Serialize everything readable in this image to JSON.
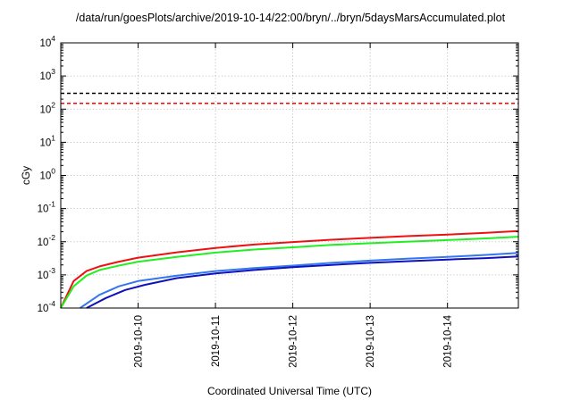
{
  "chart_data": {
    "type": "line",
    "title": "/data/run/goesPlots/archive/2019-10-14/22:00/bryn/../bryn/5daysMarsAccumulated.plot",
    "xlabel": "Coordinated Universal Time (UTC)",
    "ylabel": "cGy",
    "yscale": "log",
    "ylim": [
      0.0001,
      10000
    ],
    "xlim": [
      "2019-10-09T00:00",
      "2019-10-14T22:00"
    ],
    "grid": true,
    "x_ticks": [
      "2019-10-10",
      "2019-10-11",
      "2019-10-12",
      "2019-10-13",
      "2019-10-14"
    ],
    "y_ticks": [
      {
        "base": "10",
        "exp": "4"
      },
      {
        "base": "10",
        "exp": "3"
      },
      {
        "base": "10",
        "exp": "2"
      },
      {
        "base": "10",
        "exp": "1"
      },
      {
        "base": "10",
        "exp": "0"
      },
      {
        "base": "10",
        "exp": "-1"
      },
      {
        "base": "10",
        "exp": "-2"
      },
      {
        "base": "10",
        "exp": "-3"
      },
      {
        "base": "10",
        "exp": "-4"
      }
    ],
    "reference_lines": [
      {
        "value": 300,
        "color": "#000000",
        "style": "dashed"
      },
      {
        "value": 150,
        "color": "#ff0000",
        "style": "dashed"
      }
    ],
    "series": [
      {
        "color": "#ee1111",
        "x": [
          "2019-10-09T00:00",
          "2019-10-09T04:00",
          "2019-10-09T08:00",
          "2019-10-09T12:00",
          "2019-10-09T18:00",
          "2019-10-10T00:00",
          "2019-10-10T12:00",
          "2019-10-11T00:00",
          "2019-10-11T12:00",
          "2019-10-12T00:00",
          "2019-10-12T12:00",
          "2019-10-13T00:00",
          "2019-10-13T12:00",
          "2019-10-14T00:00",
          "2019-10-14T12:00",
          "2019-10-14T22:00"
        ],
        "values": [
          0.0001,
          0.00065,
          0.0013,
          0.0018,
          0.0025,
          0.0033,
          0.0048,
          0.0065,
          0.0082,
          0.0098,
          0.0115,
          0.0131,
          0.0148,
          0.0165,
          0.0185,
          0.021
        ]
      },
      {
        "color": "#22ee22",
        "x": [
          "2019-10-09T00:00",
          "2019-10-09T04:00",
          "2019-10-09T08:00",
          "2019-10-09T12:00",
          "2019-10-09T18:00",
          "2019-10-10T00:00",
          "2019-10-10T12:00",
          "2019-10-11T00:00",
          "2019-10-11T12:00",
          "2019-10-12T00:00",
          "2019-10-12T12:00",
          "2019-10-13T00:00",
          "2019-10-13T12:00",
          "2019-10-14T00:00",
          "2019-10-14T12:00",
          "2019-10-14T22:00"
        ],
        "values": [
          0.0001,
          0.00045,
          0.00095,
          0.0014,
          0.0019,
          0.0025,
          0.0035,
          0.0047,
          0.0058,
          0.0068,
          0.008,
          0.009,
          0.0101,
          0.0112,
          0.0126,
          0.0142
        ]
      },
      {
        "color": "#3377ee",
        "x": [
          "2019-10-09T06:00",
          "2019-10-09T12:00",
          "2019-10-09T18:00",
          "2019-10-10T00:00",
          "2019-10-10T12:00",
          "2019-10-11T00:00",
          "2019-10-11T12:00",
          "2019-10-12T00:00",
          "2019-10-12T12:00",
          "2019-10-13T00:00",
          "2019-10-13T12:00",
          "2019-10-14T00:00",
          "2019-10-14T12:00",
          "2019-10-14T22:00"
        ],
        "values": [
          0.0001,
          0.00025,
          0.00045,
          0.00065,
          0.00095,
          0.0013,
          0.0016,
          0.0019,
          0.0023,
          0.0027,
          0.0031,
          0.0035,
          0.004,
          0.0046
        ]
      },
      {
        "color": "#1111bb",
        "x": [
          "2019-10-09T08:00",
          "2019-10-09T14:00",
          "2019-10-09T20:00",
          "2019-10-10T02:00",
          "2019-10-10T12:00",
          "2019-10-11T00:00",
          "2019-10-11T12:00",
          "2019-10-12T00:00",
          "2019-10-12T12:00",
          "2019-10-13T00:00",
          "2019-10-13T12:00",
          "2019-10-14T00:00",
          "2019-10-14T12:00",
          "2019-10-14T22:00"
        ],
        "values": [
          0.0001,
          0.0002,
          0.00035,
          0.0005,
          0.0008,
          0.0011,
          0.0014,
          0.0017,
          0.002,
          0.0023,
          0.0026,
          0.0029,
          0.0032,
          0.0036
        ]
      }
    ]
  }
}
